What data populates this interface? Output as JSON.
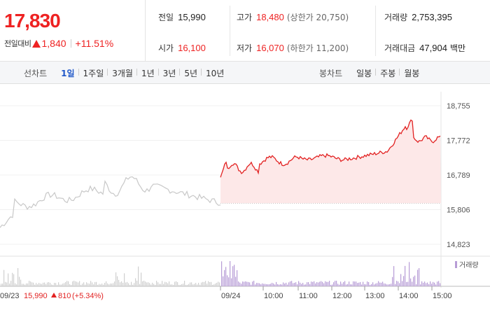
{
  "quote": {
    "current_price": "17,830",
    "change_label": "전일대비",
    "change_amount": "1,840",
    "change_percent": "+11.51%"
  },
  "stats": {
    "prev_close": {
      "label": "전일",
      "value": "15,990"
    },
    "high": {
      "label": "고가",
      "value": "18,480",
      "sub": "(상한가 20,750)"
    },
    "volume": {
      "label": "거래량",
      "value": "2,753,395"
    },
    "open": {
      "label": "시가",
      "value": "16,100"
    },
    "low": {
      "label": "저가",
      "value": "16,070",
      "sub": "(하한가 11,200)"
    },
    "amount": {
      "label": "거래대금",
      "value": "47,904",
      "unit": "백만"
    }
  },
  "line_tabs": {
    "title": "선차트",
    "items": [
      "1일",
      "1주일",
      "3개월",
      "1년",
      "3년",
      "5년",
      "10년"
    ],
    "active": "1일"
  },
  "candle_tabs": {
    "title": "봉차트",
    "items": [
      "일봉",
      "주봉",
      "월봉"
    ]
  },
  "chart": {
    "y_ticks": [
      "18,755",
      "17,772",
      "16,789",
      "15,806",
      "14,823"
    ],
    "y_tick_values": [
      18755,
      17772,
      16789,
      15806,
      14823
    ],
    "x_ticks": [
      "09/24",
      "10:00",
      "11:00",
      "12:00",
      "13:00",
      "14:00",
      "15:00"
    ],
    "volume_legend": "거래량",
    "footer_date": "09/23",
    "footer_price": "15,990",
    "footer_change": "810",
    "footer_percent": "(+5.34%)",
    "colors": {
      "up": "#e22222",
      "prev_line": "#c8c8c8",
      "fill": "#fde8e8",
      "volume_prev": "#cfcfcf",
      "volume_today": "#b79cd6"
    }
  }
}
